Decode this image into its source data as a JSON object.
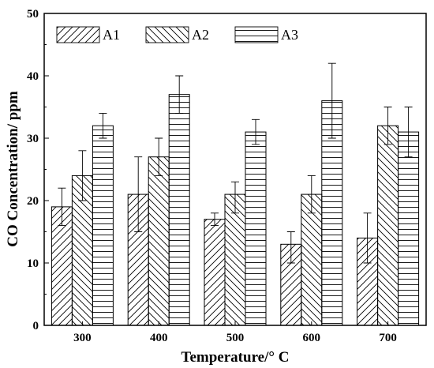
{
  "chart_data": {
    "type": "bar",
    "xlabel": "Temperature/° C",
    "ylabel": "CO Concentration/ ppm",
    "categories": [
      "300",
      "400",
      "500",
      "600",
      "700"
    ],
    "ylim": [
      0,
      50
    ],
    "yticks": [
      "0",
      "10",
      "20",
      "30",
      "40",
      "50"
    ],
    "series": [
      {
        "name": "A1",
        "pattern": "diagonal-up",
        "values": [
          19,
          21,
          17,
          13,
          14
        ],
        "err_low": [
          16,
          15,
          16,
          10,
          10
        ],
        "err_high": [
          22,
          27,
          18,
          15,
          18
        ]
      },
      {
        "name": "A2",
        "pattern": "diagonal-down",
        "values": [
          24,
          27,
          21,
          21,
          32
        ],
        "err_low": [
          20,
          24,
          18,
          18,
          29
        ],
        "err_high": [
          28,
          30,
          23,
          24,
          35
        ]
      },
      {
        "name": "A3",
        "pattern": "horizontal",
        "values": [
          32,
          37,
          31,
          36,
          31
        ],
        "err_low": [
          30,
          34,
          29,
          30,
          27
        ],
        "err_high": [
          34,
          40,
          33,
          42,
          35
        ]
      }
    ],
    "legend_position": "top-left",
    "grid": false,
    "colors": {
      "stroke": "#000000",
      "fill": "#ffffff"
    }
  }
}
